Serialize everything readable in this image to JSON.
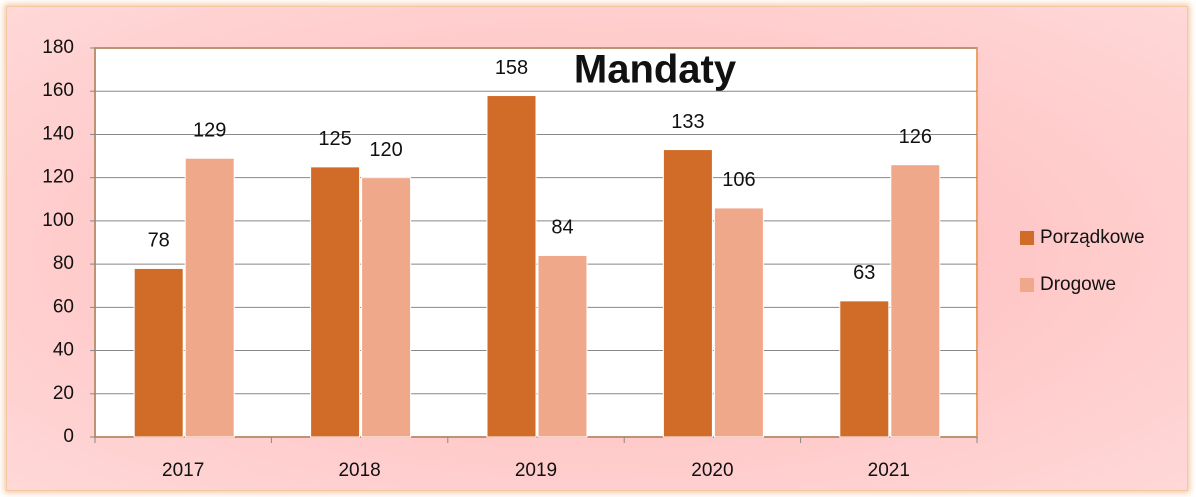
{
  "chart_data": {
    "type": "bar",
    "title": "Mandaty",
    "categories": [
      "2017",
      "2018",
      "2019",
      "2020",
      "2021"
    ],
    "series": [
      {
        "name": "Porządkowe",
        "color": "#d06b28",
        "values": [
          78,
          125,
          158,
          133,
          63
        ]
      },
      {
        "name": "Drogowe",
        "color": "#f0a88a",
        "values": [
          129,
          120,
          84,
          106,
          126
        ]
      }
    ],
    "ylim": [
      0,
      180
    ],
    "yticks": [
      0,
      20,
      40,
      60,
      80,
      100,
      120,
      140,
      160,
      180
    ],
    "grid": true,
    "legend": "right"
  }
}
